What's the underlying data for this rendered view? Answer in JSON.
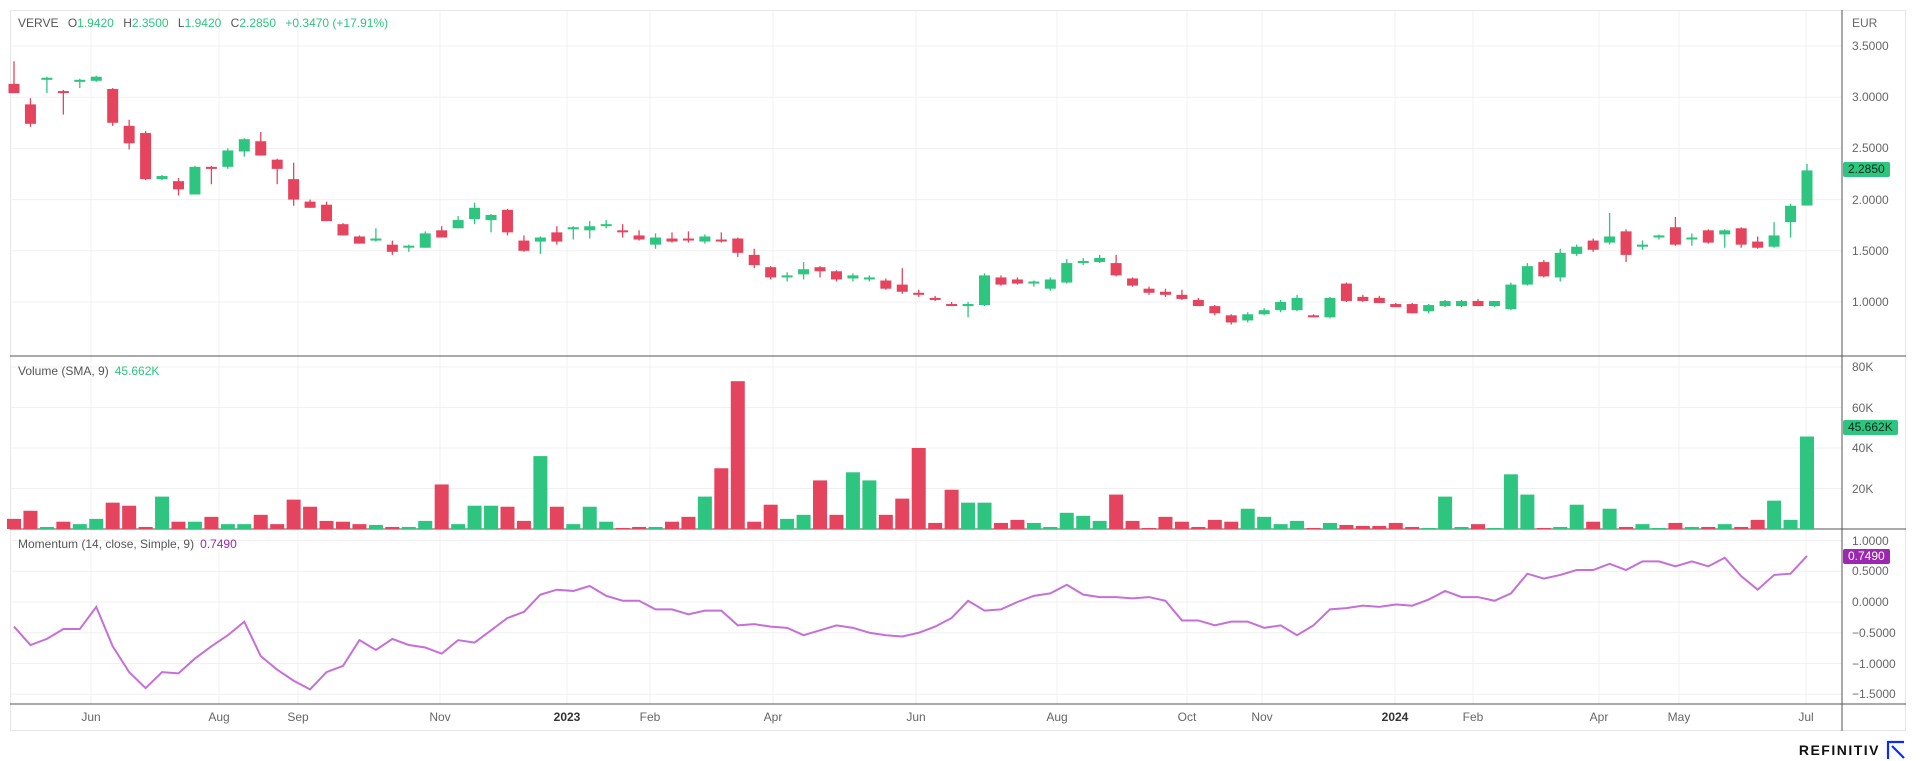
{
  "header": {
    "symbol": "VERVE",
    "o_label": "O",
    "o": "1.9420",
    "h_label": "H",
    "h": "2.3500",
    "l_label": "L",
    "l": "1.9420",
    "c_label": "C",
    "c": "2.2850",
    "change": "+0.3470 (+17.91%)"
  },
  "volume_legend": {
    "label": "Volume (SMA, 9)",
    "value": "45.662K"
  },
  "momentum_legend": {
    "label": "Momentum (14, close, Simple, 9)",
    "value": "0.7490"
  },
  "price_axis": {
    "currency": "EUR",
    "ticks": [
      "3.5000",
      "3.0000",
      "2.5000",
      "2.0000",
      "1.5000",
      "1.0000"
    ],
    "last_badge": "2.2850"
  },
  "volume_axis": {
    "ticks": [
      "80K",
      "60K",
      "40K",
      "20K"
    ],
    "last_badge": "45.662K"
  },
  "momentum_axis": {
    "ticks": [
      "1.0000",
      "0.5000",
      "0.0000",
      "−0.5000",
      "−1.0000",
      "−1.5000"
    ],
    "last_badge": "0.7490"
  },
  "x_axis": {
    "labels": [
      "Jun",
      "Aug",
      "Sep",
      "Nov",
      "2023",
      "Feb",
      "Apr",
      "Jun",
      "Aug",
      "Oct",
      "Nov",
      "2024",
      "Feb",
      "Apr",
      "May",
      "Jul"
    ]
  },
  "brand": {
    "name": "REFINITIV"
  },
  "colors": {
    "up": "#2dc57f",
    "down": "#e5445f",
    "momentum": "#c66fd8",
    "momentum_badge": "#9c27b0"
  },
  "chart_data": {
    "type": "candlestick",
    "series_ohlc": [
      [
        3.13,
        3.35,
        3.04,
        3.04
      ],
      [
        2.93,
        2.99,
        2.71,
        2.74
      ],
      [
        3.17,
        3.2,
        3.04,
        3.19
      ],
      [
        3.06,
        3.07,
        2.83,
        3.04
      ],
      [
        3.15,
        3.18,
        3.09,
        3.17
      ],
      [
        3.16,
        3.21,
        3.15,
        3.2
      ],
      [
        3.08,
        3.09,
        2.72,
        2.75
      ],
      [
        2.72,
        2.78,
        2.49,
        2.55
      ],
      [
        2.65,
        2.67,
        2.19,
        2.2
      ],
      [
        2.2,
        2.24,
        2.19,
        2.23
      ],
      [
        2.18,
        2.21,
        2.04,
        2.1
      ],
      [
        2.05,
        2.33,
        2.05,
        2.32
      ],
      [
        2.32,
        2.33,
        2.15,
        2.3
      ],
      [
        2.32,
        2.5,
        2.3,
        2.48
      ],
      [
        2.47,
        2.6,
        2.42,
        2.59
      ],
      [
        2.57,
        2.66,
        2.43,
        2.43
      ],
      [
        2.39,
        2.4,
        2.15,
        2.3
      ],
      [
        2.2,
        2.36,
        1.94,
        2.0
      ],
      [
        1.98,
        2.0,
        1.92,
        1.92
      ],
      [
        1.95,
        1.98,
        1.79,
        1.79
      ],
      [
        1.76,
        1.77,
        1.65,
        1.65
      ],
      [
        1.64,
        1.65,
        1.57,
        1.57
      ],
      [
        1.6,
        1.72,
        1.59,
        1.62
      ],
      [
        1.56,
        1.6,
        1.46,
        1.49
      ],
      [
        1.54,
        1.56,
        1.49,
        1.55
      ],
      [
        1.53,
        1.69,
        1.53,
        1.67
      ],
      [
        1.7,
        1.74,
        1.63,
        1.63
      ],
      [
        1.72,
        1.84,
        1.72,
        1.8
      ],
      [
        1.81,
        1.97,
        1.76,
        1.92
      ],
      [
        1.8,
        1.86,
        1.68,
        1.85
      ],
      [
        1.9,
        1.91,
        1.65,
        1.68
      ],
      [
        1.6,
        1.65,
        1.49,
        1.5
      ],
      [
        1.59,
        1.64,
        1.47,
        1.63
      ],
      [
        1.68,
        1.74,
        1.56,
        1.59
      ],
      [
        1.71,
        1.74,
        1.61,
        1.73
      ],
      [
        1.7,
        1.79,
        1.62,
        1.74
      ],
      [
        1.75,
        1.8,
        1.72,
        1.76
      ],
      [
        1.7,
        1.76,
        1.63,
        1.69
      ],
      [
        1.65,
        1.7,
        1.6,
        1.61
      ],
      [
        1.56,
        1.67,
        1.52,
        1.63
      ],
      [
        1.62,
        1.68,
        1.58,
        1.59
      ],
      [
        1.62,
        1.69,
        1.58,
        1.6
      ],
      [
        1.59,
        1.66,
        1.57,
        1.64
      ],
      [
        1.61,
        1.68,
        1.58,
        1.6
      ],
      [
        1.62,
        1.63,
        1.44,
        1.48
      ],
      [
        1.46,
        1.52,
        1.33,
        1.36
      ],
      [
        1.34,
        1.35,
        1.22,
        1.24
      ],
      [
        1.24,
        1.29,
        1.2,
        1.26
      ],
      [
        1.27,
        1.39,
        1.22,
        1.32
      ],
      [
        1.34,
        1.35,
        1.24,
        1.3
      ],
      [
        1.3,
        1.31,
        1.2,
        1.22
      ],
      [
        1.23,
        1.28,
        1.2,
        1.26
      ],
      [
        1.22,
        1.26,
        1.2,
        1.24
      ],
      [
        1.21,
        1.23,
        1.12,
        1.13
      ],
      [
        1.17,
        1.33,
        1.08,
        1.1
      ],
      [
        1.09,
        1.12,
        1.05,
        1.07
      ],
      [
        1.04,
        1.06,
        1.01,
        1.02
      ],
      [
        0.98,
        1.0,
        0.96,
        0.97
      ],
      [
        0.96,
        1.0,
        0.85,
        0.98
      ],
      [
        0.97,
        1.28,
        0.96,
        1.26
      ],
      [
        1.24,
        1.26,
        1.16,
        1.17
      ],
      [
        1.22,
        1.24,
        1.17,
        1.18
      ],
      [
        1.18,
        1.21,
        1.15,
        1.2
      ],
      [
        1.13,
        1.24,
        1.11,
        1.22
      ],
      [
        1.19,
        1.42,
        1.18,
        1.38
      ],
      [
        1.38,
        1.43,
        1.36,
        1.4
      ],
      [
        1.39,
        1.46,
        1.38,
        1.43
      ],
      [
        1.38,
        1.46,
        1.25,
        1.26
      ],
      [
        1.23,
        1.24,
        1.15,
        1.16
      ],
      [
        1.13,
        1.15,
        1.07,
        1.09
      ],
      [
        1.1,
        1.13,
        1.05,
        1.07
      ],
      [
        1.07,
        1.12,
        1.02,
        1.03
      ],
      [
        1.02,
        1.04,
        0.96,
        0.96
      ],
      [
        0.96,
        0.97,
        0.87,
        0.89
      ],
      [
        0.87,
        0.88,
        0.78,
        0.8
      ],
      [
        0.82,
        0.9,
        0.8,
        0.88
      ],
      [
        0.88,
        0.94,
        0.87,
        0.92
      ],
      [
        0.92,
        1.02,
        0.9,
        1.0
      ],
      [
        0.92,
        1.07,
        0.91,
        1.04
      ],
      [
        0.87,
        0.88,
        0.85,
        0.86
      ],
      [
        0.85,
        1.05,
        0.84,
        1.04
      ],
      [
        1.18,
        1.19,
        1.0,
        1.01
      ],
      [
        1.05,
        1.07,
        1.0,
        1.01
      ],
      [
        1.04,
        1.06,
        0.99,
        0.99
      ],
      [
        0.98,
        0.99,
        0.95,
        0.95
      ],
      [
        0.98,
        0.99,
        0.89,
        0.89
      ],
      [
        0.91,
        0.98,
        0.89,
        0.97
      ],
      [
        0.96,
        1.02,
        0.95,
        1.01
      ],
      [
        0.96,
        1.02,
        0.95,
        1.01
      ],
      [
        1.01,
        1.03,
        0.96,
        0.96
      ],
      [
        0.96,
        1.01,
        0.95,
        1.01
      ],
      [
        0.93,
        1.19,
        0.92,
        1.17
      ],
      [
        1.17,
        1.38,
        1.16,
        1.35
      ],
      [
        1.39,
        1.41,
        1.24,
        1.25
      ],
      [
        1.24,
        1.52,
        1.2,
        1.48
      ],
      [
        1.47,
        1.56,
        1.45,
        1.54
      ],
      [
        1.6,
        1.62,
        1.49,
        1.51
      ],
      [
        1.58,
        1.87,
        1.56,
        1.64
      ],
      [
        1.69,
        1.71,
        1.39,
        1.46
      ],
      [
        1.54,
        1.6,
        1.51,
        1.56
      ],
      [
        1.63,
        1.66,
        1.61,
        1.65
      ],
      [
        1.73,
        1.83,
        1.55,
        1.56
      ],
      [
        1.63,
        1.67,
        1.55,
        1.63
      ],
      [
        1.7,
        1.71,
        1.57,
        1.58
      ],
      [
        1.66,
        1.71,
        1.53,
        1.7
      ],
      [
        1.72,
        1.73,
        1.53,
        1.56
      ],
      [
        1.59,
        1.64,
        1.52,
        1.53
      ],
      [
        1.54,
        1.78,
        1.53,
        1.65
      ],
      [
        1.78,
        1.96,
        1.63,
        1.94
      ],
      [
        1.942,
        2.35,
        1.942,
        2.285
      ]
    ],
    "volume_k": [
      5,
      9,
      1,
      3.6,
      2.4,
      5,
      13,
      11.5,
      1,
      16,
      3.6,
      3.6,
      6,
      2.4,
      2.4,
      7,
      2.4,
      14.5,
      11,
      4,
      3.6,
      2.4,
      2,
      1,
      1,
      4,
      22,
      2.4,
      11.5,
      11.5,
      11,
      4,
      36,
      11,
      2.4,
      11,
      3.6,
      0.5,
      1,
      1,
      3.6,
      6,
      16,
      30,
      73,
      3.6,
      12,
      5,
      7,
      24,
      7,
      28,
      24,
      7,
      15,
      40,
      3,
      19.4,
      13,
      13,
      3,
      4.5,
      3,
      1,
      8,
      6.5,
      4,
      17,
      4,
      0.5,
      6,
      3.6,
      1,
      4.5,
      3.6,
      10,
      6,
      2.4,
      4,
      0.5,
      3,
      2,
      1.5,
      1.5,
      3,
      1,
      0.5,
      16,
      1,
      2.4,
      0.5,
      27,
      17,
      0.5,
      1,
      12,
      3.6,
      10,
      1,
      2.4,
      0.5,
      3,
      1,
      1,
      2.4,
      1,
      4.5,
      14,
      4.5,
      45.662
    ],
    "momentum": [
      -0.4,
      -0.7,
      -0.6,
      -0.44,
      -0.44,
      -0.08,
      -0.72,
      -1.14,
      -1.4,
      -1.14,
      -1.16,
      -0.92,
      -0.72,
      -0.54,
      -0.32,
      -0.88,
      -1.1,
      -1.28,
      -1.42,
      -1.14,
      -1.04,
      -0.62,
      -0.78,
      -0.6,
      -0.7,
      -0.74,
      -0.84,
      -0.62,
      -0.66,
      -0.46,
      -0.26,
      -0.16,
      0.12,
      0.2,
      0.18,
      0.26,
      0.1,
      0.02,
      0.02,
      -0.12,
      -0.12,
      -0.2,
      -0.14,
      -0.14,
      -0.38,
      -0.36,
      -0.4,
      -0.42,
      -0.54,
      -0.46,
      -0.38,
      -0.42,
      -0.5,
      -0.54,
      -0.56,
      -0.5,
      -0.4,
      -0.26,
      0.02,
      -0.14,
      -0.12,
      0,
      0.1,
      0.14,
      0.28,
      0.12,
      0.08,
      0.08,
      0.06,
      0.08,
      0.02,
      -0.3,
      -0.3,
      -0.38,
      -0.32,
      -0.32,
      -0.42,
      -0.38,
      -0.54,
      -0.38,
      -0.12,
      -0.1,
      -0.06,
      -0.08,
      -0.04,
      -0.06,
      0.04,
      0.18,
      0.08,
      0.08,
      0.02,
      0.14,
      0.46,
      0.38,
      0.44,
      0.52,
      0.52,
      0.62,
      0.52,
      0.66,
      0.66,
      0.58,
      0.66,
      0.58,
      0.72,
      0.42,
      0.2,
      0.44,
      0.46,
      0.749
    ],
    "price_ylim": [
      0.6,
      3.85
    ],
    "volume_ylim": [
      0,
      80
    ],
    "momentum_ylim": [
      -1.7,
      1.1
    ],
    "grid": true
  }
}
